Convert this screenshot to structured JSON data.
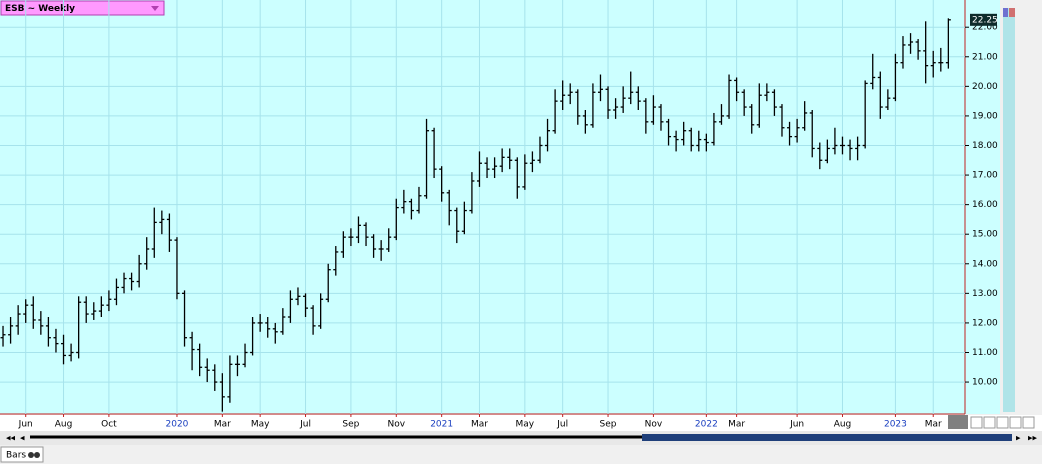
{
  "chart_data": {
    "type": "ohlc",
    "title": "ESB ~ Weekly",
    "open": [
      11.5,
      11.6,
      11.9,
      12.3,
      12.6,
      12.1,
      11.9,
      11.5,
      11.3,
      10.9,
      11.0,
      12.7,
      12.3,
      12.4,
      12.6,
      12.8,
      13.2,
      13.5,
      13.4,
      14.0,
      14.5,
      15.4,
      15.5,
      14.8,
      13.0,
      11.5,
      11.1,
      10.5,
      10.4,
      10.0,
      9.5,
      10.6,
      10.6,
      11.0,
      12.0,
      12.0,
      11.8,
      11.7,
      12.2,
      12.8,
      12.9,
      12.5,
      11.9,
      12.8,
      13.8,
      14.4,
      14.9,
      14.9,
      15.3,
      14.9,
      14.5,
      14.5,
      14.9,
      15.9,
      16.1,
      15.8,
      16.3,
      18.5,
      17.2,
      16.4,
      15.8,
      15.1,
      15.8,
      16.8,
      17.4,
      17.2,
      17.3,
      17.6,
      17.5,
      16.6,
      17.4,
      17.5,
      18.0,
      18.5,
      19.5,
      19.7,
      19.8,
      19.0,
      18.7,
      19.8,
      19.9,
      19.2,
      19.3,
      19.6,
      19.8,
      19.5,
      18.8,
      19.3,
      18.8,
      18.3,
      18.2,
      18.5,
      18.0,
      18.2,
      18.1,
      18.8,
      19.0,
      20.2,
      19.8,
      19.3,
      18.7,
      19.7,
      19.8,
      19.3,
      18.6,
      18.3,
      18.6,
      19.1,
      17.9,
      17.5,
      17.9,
      18.0,
      18.0,
      17.9,
      18.0,
      20.1,
      20.3,
      19.3,
      19.6,
      20.8,
      21.4,
      21.5,
      21.2,
      20.7,
      20.8,
      20.8
    ],
    "high": [
      11.9,
      12.2,
      12.6,
      12.8,
      12.9,
      12.4,
      12.2,
      11.8,
      11.6,
      11.3,
      12.9,
      12.9,
      12.7,
      12.9,
      13.1,
      13.5,
      13.7,
      13.7,
      14.3,
      14.9,
      15.9,
      15.8,
      15.7,
      14.9,
      13.1,
      11.7,
      11.3,
      10.8,
      10.6,
      10.3,
      10.9,
      10.9,
      11.3,
      12.2,
      12.3,
      12.2,
      12.0,
      12.5,
      13.1,
      13.2,
      13.0,
      12.6,
      13.0,
      14.0,
      14.6,
      15.1,
      15.2,
      15.6,
      15.4,
      15.0,
      14.8,
      15.2,
      16.2,
      16.5,
      16.2,
      16.6,
      18.9,
      18.6,
      17.3,
      16.5,
      15.9,
      16.1,
      17.1,
      17.8,
      17.6,
      17.6,
      17.9,
      17.9,
      17.6,
      17.7,
      17.8,
      18.3,
      18.9,
      19.9,
      20.2,
      20.1,
      19.9,
      19.2,
      20.1,
      20.4,
      20.0,
      19.6,
      20.0,
      20.5,
      20.0,
      19.6,
      19.7,
      19.4,
      18.9,
      18.5,
      18.8,
      18.6,
      18.5,
      18.4,
      19.1,
      19.4,
      20.4,
      20.3,
      19.9,
      19.4,
      20.1,
      20.1,
      19.9,
      19.4,
      18.8,
      18.9,
      19.5,
      19.2,
      18.1,
      18.2,
      18.6,
      18.3,
      18.2,
      18.3,
      20.2,
      21.1,
      20.5,
      19.9,
      21.1,
      21.7,
      21.8,
      21.6,
      22.2,
      21.2,
      21.3,
      22.3
    ],
    "low": [
      11.2,
      11.3,
      11.6,
      12.0,
      11.8,
      11.6,
      11.2,
      11.0,
      10.6,
      10.7,
      10.8,
      12.0,
      12.1,
      12.2,
      12.4,
      12.6,
      13.0,
      13.1,
      13.2,
      13.8,
      14.2,
      15.0,
      14.4,
      12.8,
      11.2,
      10.4,
      10.2,
      10.0,
      9.7,
      9.0,
      9.3,
      10.2,
      10.5,
      10.9,
      11.7,
      11.5,
      11.3,
      11.6,
      12.0,
      12.6,
      12.2,
      11.6,
      11.8,
      12.7,
      13.6,
      14.2,
      14.6,
      14.7,
      14.6,
      14.2,
      14.1,
      14.4,
      14.8,
      15.7,
      15.5,
      15.7,
      16.2,
      16.9,
      16.1,
      15.3,
      14.7,
      15.0,
      15.7,
      16.6,
      16.9,
      16.9,
      17.1,
      17.2,
      16.2,
      16.5,
      17.1,
      17.4,
      17.8,
      18.4,
      19.2,
      19.4,
      18.7,
      18.4,
      18.6,
      19.5,
      18.9,
      18.9,
      19.1,
      19.4,
      19.2,
      18.4,
      18.7,
      18.5,
      18.0,
      17.8,
      18.0,
      17.8,
      17.8,
      17.8,
      18.0,
      18.7,
      18.9,
      19.5,
      19.0,
      18.4,
      18.6,
      19.5,
      19.0,
      18.3,
      18.0,
      18.1,
      18.5,
      17.6,
      17.2,
      17.4,
      17.7,
      17.7,
      17.5,
      17.5,
      17.9,
      19.9,
      18.9,
      19.2,
      19.5,
      20.6,
      21.1,
      20.9,
      20.1,
      20.3,
      20.5,
      20.6
    ],
    "close": [
      11.6,
      11.9,
      12.3,
      12.6,
      12.1,
      11.9,
      11.5,
      11.3,
      10.9,
      11.0,
      12.7,
      12.3,
      12.4,
      12.6,
      12.8,
      13.2,
      13.5,
      13.4,
      14.0,
      14.5,
      15.4,
      15.5,
      14.8,
      13.0,
      11.5,
      11.1,
      10.5,
      10.4,
      10.0,
      9.5,
      10.6,
      10.6,
      11.0,
      12.0,
      12.0,
      11.8,
      11.7,
      12.2,
      12.8,
      12.9,
      12.5,
      11.9,
      12.8,
      13.8,
      14.4,
      14.9,
      14.9,
      15.3,
      14.9,
      14.5,
      14.5,
      14.9,
      15.9,
      16.1,
      15.8,
      16.3,
      18.5,
      17.2,
      16.4,
      15.8,
      15.1,
      15.8,
      16.8,
      17.4,
      17.2,
      17.3,
      17.6,
      17.5,
      16.6,
      17.4,
      17.5,
      18.0,
      18.5,
      19.5,
      19.7,
      19.8,
      19.0,
      18.7,
      19.8,
      19.9,
      19.2,
      19.3,
      19.6,
      19.8,
      19.5,
      18.8,
      19.3,
      18.8,
      18.3,
      18.2,
      18.5,
      18.0,
      18.2,
      18.1,
      18.8,
      19.0,
      20.2,
      19.8,
      19.3,
      18.7,
      19.7,
      19.8,
      19.3,
      18.6,
      18.3,
      18.6,
      19.1,
      17.9,
      17.5,
      17.9,
      18.0,
      18.0,
      17.9,
      18.0,
      20.1,
      20.3,
      19.3,
      19.6,
      20.8,
      21.4,
      21.5,
      21.2,
      20.7,
      20.8,
      20.8,
      22.25
    ],
    "color": "#000000",
    "xlim": [
      -0.4,
      127.2
    ],
    "xticks": [
      {
        "value": 3,
        "label": "Jun"
      },
      {
        "value": 8,
        "label": "Aug"
      },
      {
        "value": 14,
        "label": "Oct"
      },
      {
        "value": 23,
        "label": "2020"
      },
      {
        "value": 29,
        "label": "Mar"
      },
      {
        "value": 34,
        "label": "May"
      },
      {
        "value": 40,
        "label": "Jul"
      },
      {
        "value": 46,
        "label": "Sep"
      },
      {
        "value": 52,
        "label": "Nov"
      },
      {
        "value": 58,
        "label": "2021"
      },
      {
        "value": 63,
        "label": "Mar"
      },
      {
        "value": 69,
        "label": "May"
      },
      {
        "value": 74,
        "label": "Jul"
      },
      {
        "value": 80,
        "label": "Sep"
      },
      {
        "value": 86,
        "label": "Nov"
      },
      {
        "value": 93,
        "label": "2022"
      },
      {
        "value": 97,
        "label": "Mar"
      },
      {
        "value": 105,
        "label": "Jun"
      },
      {
        "value": 111,
        "label": "Aug"
      },
      {
        "value": 118,
        "label": "2023"
      },
      {
        "value": 123,
        "label": "Mar"
      }
    ],
    "ylim": [
      8.92,
      22.92
    ],
    "yticks": [
      {
        "value": 10,
        "label": "10.00"
      },
      {
        "value": 11,
        "label": "11.00"
      },
      {
        "value": 12,
        "label": "12.00"
      },
      {
        "value": 13,
        "label": "13.00"
      },
      {
        "value": 14,
        "label": "14.00"
      },
      {
        "value": 15,
        "label": "15.00"
      },
      {
        "value": 16,
        "label": "16.00"
      },
      {
        "value": 17,
        "label": "17.00"
      },
      {
        "value": 18,
        "label": "18.00"
      },
      {
        "value": 19,
        "label": "19.00"
      },
      {
        "value": 20,
        "label": "20.00"
      },
      {
        "value": 21,
        "label": "21.00"
      },
      {
        "value": 22,
        "label": "22.00"
      }
    ],
    "grid": true,
    "last_price": {
      "value": 22.25,
      "label": "22.25"
    },
    "tab": "Bars"
  }
}
